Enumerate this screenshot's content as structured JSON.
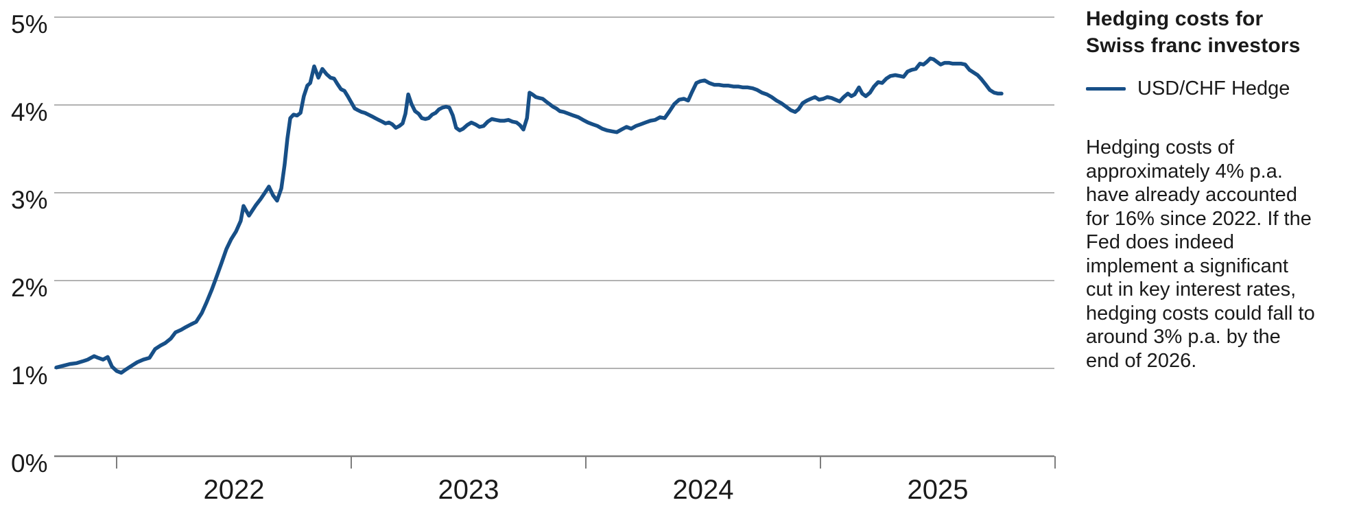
{
  "page": {
    "background": "#ffffff"
  },
  "panel": {
    "title_lines": [
      "Hedging costs for",
      "Swiss franc investors"
    ],
    "legend": {
      "label": "USD/CHF Hedge",
      "swatch_color": "#174f87"
    },
    "commentary": "Hedging costs of approximately 4% p.a. have already accounted for 16% since 2022. If the Fed does indeed implement a significant cut in key interest rates, hedging costs could fall to around 3% p.a. by the end of 2026."
  },
  "chart_data": {
    "type": "line",
    "title": "Hedging costs for Swiss franc investors",
    "xlabel": "",
    "ylabel": "",
    "x_tick_labels": [
      "2022",
      "2023",
      "2024",
      "2025"
    ],
    "x_axis_boundary_years": [
      2022,
      2023,
      2024,
      2025,
      2026
    ],
    "x_range": [
      2021.74,
      2026.0
    ],
    "y_tick_labels": [
      "0%",
      "1%",
      "2%",
      "3%",
      "4%",
      "5%"
    ],
    "ylim": [
      0,
      5
    ],
    "grid": "horizontal",
    "legend_position": "right-top",
    "colors": {
      "line": "#174f87",
      "grid": "#b2b2b2",
      "axis": "#7d7d7d",
      "text": "#1a1a1a"
    },
    "series": [
      {
        "name": "USD/CHF Hedge",
        "color": "#174f87",
        "unit": "% p.a.",
        "points": [
          [
            2021.743,
            1.01
          ],
          [
            2021.772,
            1.03
          ],
          [
            2021.801,
            1.05
          ],
          [
            2021.83,
            1.06
          ],
          [
            2021.854,
            1.08
          ],
          [
            2021.877,
            1.1
          ],
          [
            2021.904,
            1.14
          ],
          [
            2021.921,
            1.12
          ],
          [
            2021.942,
            1.1
          ],
          [
            2021.962,
            1.13
          ],
          [
            2021.98,
            1.02
          ],
          [
            2022.0,
            0.97
          ],
          [
            2022.02,
            0.95
          ],
          [
            2022.041,
            0.99
          ],
          [
            2022.064,
            1.03
          ],
          [
            2022.088,
            1.07
          ],
          [
            2022.114,
            1.1
          ],
          [
            2022.14,
            1.12
          ],
          [
            2022.164,
            1.22
          ],
          [
            2022.187,
            1.26
          ],
          [
            2022.208,
            1.29
          ],
          [
            2022.231,
            1.34
          ],
          [
            2022.251,
            1.41
          ],
          [
            2022.275,
            1.44
          ],
          [
            2022.295,
            1.47
          ],
          [
            2022.316,
            1.5
          ],
          [
            2022.339,
            1.53
          ],
          [
            2022.363,
            1.63
          ],
          [
            2022.383,
            1.75
          ],
          [
            2022.406,
            1.9
          ],
          [
            2022.427,
            2.05
          ],
          [
            2022.447,
            2.2
          ],
          [
            2022.468,
            2.36
          ],
          [
            2022.488,
            2.47
          ],
          [
            2022.509,
            2.56
          ],
          [
            2022.529,
            2.68
          ],
          [
            2022.541,
            2.85
          ],
          [
            2022.564,
            2.74
          ],
          [
            2022.594,
            2.86
          ],
          [
            2022.614,
            2.93
          ],
          [
            2022.632,
            3.0
          ],
          [
            2022.649,
            3.07
          ],
          [
            2022.667,
            2.97
          ],
          [
            2022.684,
            2.91
          ],
          [
            2022.702,
            3.05
          ],
          [
            2022.716,
            3.32
          ],
          [
            2022.728,
            3.62
          ],
          [
            2022.74,
            3.85
          ],
          [
            2022.754,
            3.89
          ],
          [
            2022.769,
            3.88
          ],
          [
            2022.784,
            3.91
          ],
          [
            2022.798,
            4.1
          ],
          [
            2022.813,
            4.22
          ],
          [
            2022.825,
            4.25
          ],
          [
            2022.842,
            4.44
          ],
          [
            2022.86,
            4.31
          ],
          [
            2022.877,
            4.41
          ],
          [
            2022.895,
            4.35
          ],
          [
            2022.912,
            4.31
          ],
          [
            2022.927,
            4.3
          ],
          [
            2022.941,
            4.24
          ],
          [
            2022.956,
            4.18
          ],
          [
            2022.971,
            4.16
          ],
          [
            2022.985,
            4.1
          ],
          [
            2023.0,
            4.03
          ],
          [
            2023.015,
            3.96
          ],
          [
            2023.029,
            3.94
          ],
          [
            2023.044,
            3.92
          ],
          [
            2023.058,
            3.91
          ],
          [
            2023.073,
            3.89
          ],
          [
            2023.088,
            3.87
          ],
          [
            2023.102,
            3.85
          ],
          [
            2023.117,
            3.83
          ],
          [
            2023.132,
            3.81
          ],
          [
            2023.146,
            3.79
          ],
          [
            2023.161,
            3.8
          ],
          [
            2023.175,
            3.78
          ],
          [
            2023.19,
            3.74
          ],
          [
            2023.205,
            3.76
          ],
          [
            2023.219,
            3.79
          ],
          [
            2023.231,
            3.9
          ],
          [
            2023.243,
            4.12
          ],
          [
            2023.257,
            4.01
          ],
          [
            2023.272,
            3.93
          ],
          [
            2023.287,
            3.9
          ],
          [
            2023.301,
            3.85
          ],
          [
            2023.316,
            3.84
          ],
          [
            2023.33,
            3.85
          ],
          [
            2023.345,
            3.89
          ],
          [
            2023.36,
            3.91
          ],
          [
            2023.374,
            3.95
          ],
          [
            2023.389,
            3.97
          ],
          [
            2023.404,
            3.98
          ],
          [
            2023.418,
            3.97
          ],
          [
            2023.433,
            3.88
          ],
          [
            2023.447,
            3.74
          ],
          [
            2023.462,
            3.71
          ],
          [
            2023.477,
            3.73
          ],
          [
            2023.494,
            3.77
          ],
          [
            2023.512,
            3.8
          ],
          [
            2023.529,
            3.78
          ],
          [
            2023.547,
            3.75
          ],
          [
            2023.564,
            3.76
          ],
          [
            2023.582,
            3.81
          ],
          [
            2023.599,
            3.84
          ],
          [
            2023.617,
            3.83
          ],
          [
            2023.635,
            3.82
          ],
          [
            2023.652,
            3.82
          ],
          [
            2023.67,
            3.83
          ],
          [
            2023.687,
            3.81
          ],
          [
            2023.705,
            3.8
          ],
          [
            2023.719,
            3.77
          ],
          [
            2023.734,
            3.72
          ],
          [
            2023.749,
            3.85
          ],
          [
            2023.76,
            4.14
          ],
          [
            2023.772,
            4.12
          ],
          [
            2023.787,
            4.09
          ],
          [
            2023.801,
            4.08
          ],
          [
            2023.816,
            4.07
          ],
          [
            2023.83,
            4.04
          ],
          [
            2023.845,
            4.01
          ],
          [
            2023.86,
            3.98
          ],
          [
            2023.874,
            3.96
          ],
          [
            2023.889,
            3.93
          ],
          [
            2023.906,
            3.92
          ],
          [
            2023.927,
            3.9
          ],
          [
            2023.947,
            3.88
          ],
          [
            2023.968,
            3.86
          ],
          [
            2023.988,
            3.83
          ],
          [
            2024.009,
            3.8
          ],
          [
            2024.029,
            3.78
          ],
          [
            2024.05,
            3.76
          ],
          [
            2024.07,
            3.73
          ],
          [
            2024.091,
            3.71
          ],
          [
            2024.111,
            3.7
          ],
          [
            2024.132,
            3.69
          ],
          [
            2024.152,
            3.72
          ],
          [
            2024.173,
            3.75
          ],
          [
            2024.193,
            3.73
          ],
          [
            2024.213,
            3.76
          ],
          [
            2024.234,
            3.78
          ],
          [
            2024.254,
            3.8
          ],
          [
            2024.275,
            3.82
          ],
          [
            2024.295,
            3.83
          ],
          [
            2024.316,
            3.86
          ],
          [
            2024.336,
            3.85
          ],
          [
            2024.357,
            3.93
          ],
          [
            2024.377,
            4.01
          ],
          [
            2024.398,
            4.06
          ],
          [
            2024.418,
            4.07
          ],
          [
            2024.436,
            4.05
          ],
          [
            2024.453,
            4.15
          ],
          [
            2024.471,
            4.25
          ],
          [
            2024.488,
            4.27
          ],
          [
            2024.506,
            4.28
          ],
          [
            2024.526,
            4.25
          ],
          [
            2024.547,
            4.23
          ],
          [
            2024.567,
            4.23
          ],
          [
            2024.588,
            4.22
          ],
          [
            2024.608,
            4.22
          ],
          [
            2024.629,
            4.21
          ],
          [
            2024.649,
            4.21
          ],
          [
            2024.67,
            4.2
          ],
          [
            2024.69,
            4.2
          ],
          [
            2024.711,
            4.19
          ],
          [
            2024.731,
            4.17
          ],
          [
            2024.751,
            4.14
          ],
          [
            2024.772,
            4.12
          ],
          [
            2024.792,
            4.09
          ],
          [
            2024.813,
            4.05
          ],
          [
            2024.833,
            4.02
          ],
          [
            2024.854,
            3.98
          ],
          [
            2024.874,
            3.94
          ],
          [
            2024.892,
            3.92
          ],
          [
            2024.906,
            3.95
          ],
          [
            2024.924,
            4.02
          ],
          [
            2024.942,
            4.05
          ],
          [
            2024.959,
            4.07
          ],
          [
            2024.977,
            4.09
          ],
          [
            2024.994,
            4.06
          ],
          [
            2025.012,
            4.07
          ],
          [
            2025.029,
            4.09
          ],
          [
            2025.047,
            4.08
          ],
          [
            2025.064,
            4.06
          ],
          [
            2025.082,
            4.04
          ],
          [
            2025.099,
            4.09
          ],
          [
            2025.117,
            4.13
          ],
          [
            2025.132,
            4.1
          ],
          [
            2025.146,
            4.12
          ],
          [
            2025.164,
            4.2
          ],
          [
            2025.178,
            4.13
          ],
          [
            2025.193,
            4.1
          ],
          [
            2025.211,
            4.14
          ],
          [
            2025.228,
            4.21
          ],
          [
            2025.246,
            4.26
          ],
          [
            2025.263,
            4.25
          ],
          [
            2025.281,
            4.3
          ],
          [
            2025.298,
            4.33
          ],
          [
            2025.319,
            4.34
          ],
          [
            2025.339,
            4.33
          ],
          [
            2025.354,
            4.32
          ],
          [
            2025.371,
            4.38
          ],
          [
            2025.389,
            4.4
          ],
          [
            2025.406,
            4.41
          ],
          [
            2025.424,
            4.47
          ],
          [
            2025.439,
            4.46
          ],
          [
            2025.453,
            4.49
          ],
          [
            2025.468,
            4.53
          ],
          [
            2025.482,
            4.52
          ],
          [
            2025.497,
            4.49
          ],
          [
            2025.512,
            4.46
          ],
          [
            2025.529,
            4.48
          ],
          [
            2025.547,
            4.48
          ],
          [
            2025.564,
            4.47
          ],
          [
            2025.582,
            4.47
          ],
          [
            2025.6,
            4.47
          ],
          [
            2025.617,
            4.46
          ],
          [
            2025.635,
            4.4
          ],
          [
            2025.652,
            4.37
          ],
          [
            2025.67,
            4.34
          ],
          [
            2025.687,
            4.29
          ],
          [
            2025.705,
            4.23
          ],
          [
            2025.722,
            4.17
          ],
          [
            2025.74,
            4.14
          ],
          [
            2025.757,
            4.13
          ],
          [
            2025.772,
            4.13
          ]
        ]
      }
    ]
  }
}
